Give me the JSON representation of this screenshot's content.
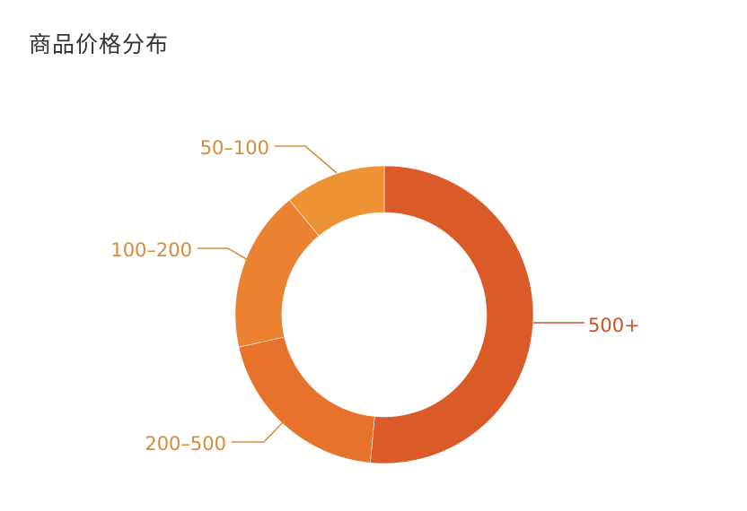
{
  "chart_data": {
    "type": "pie",
    "variant": "donut",
    "title": "商品价格分布",
    "legend": "none",
    "categories": [
      "500+",
      "200-500",
      "100-200",
      "50-100"
    ],
    "values": [
      51.5,
      20,
      17.5,
      11
    ],
    "colors": [
      "#da5a28",
      "#e7722c",
      "#ea8232",
      "#ee9236"
    ],
    "label_colors": [
      "#c8532a",
      "#d98a3a",
      "#d98a3a",
      "#d98a3a"
    ],
    "labels": [
      "500+",
      "200–500",
      "100–200",
      "50–100"
    ]
  }
}
